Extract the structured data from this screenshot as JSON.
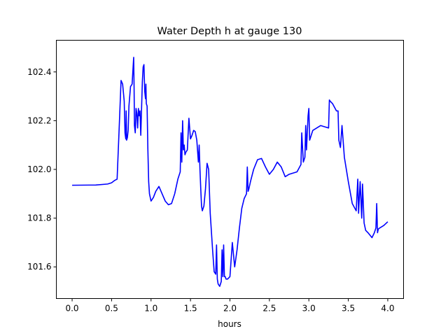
{
  "chart_data": {
    "type": "line",
    "title": "Water Depth h at gauge 130",
    "xlabel": "hours",
    "ylabel": "",
    "xlim": [
      -0.2,
      4.2
    ],
    "ylim": [
      101.47,
      102.53
    ],
    "x_ticks": [
      0.0,
      0.5,
      1.0,
      1.5,
      2.0,
      2.5,
      3.0,
      3.5,
      4.0
    ],
    "x_tick_labels": [
      "0.0",
      "0.5",
      "1.0",
      "1.5",
      "2.0",
      "2.5",
      "3.0",
      "3.5",
      "4.0"
    ],
    "y_ticks": [
      101.6,
      101.8,
      102.0,
      102.2,
      102.4
    ],
    "y_tick_labels": [
      "101.6",
      "101.8",
      "102.0",
      "102.2",
      "102.4"
    ],
    "grid": false,
    "colors": {
      "line": "#0000ff"
    },
    "series": [
      {
        "x": [
          0.0,
          0.3,
          0.45,
          0.5,
          0.54,
          0.57,
          0.6,
          0.62,
          0.64,
          0.66,
          0.67,
          0.68,
          0.685,
          0.69,
          0.7,
          0.71,
          0.72,
          0.74,
          0.76,
          0.78,
          0.785,
          0.79,
          0.8,
          0.81,
          0.82,
          0.83,
          0.84,
          0.85,
          0.86,
          0.87,
          0.88,
          0.89,
          0.9,
          0.91,
          0.92,
          0.93,
          0.935,
          0.94,
          0.95,
          0.96,
          0.97,
          0.98,
          1.0,
          1.03,
          1.06,
          1.1,
          1.14,
          1.18,
          1.22,
          1.26,
          1.3,
          1.34,
          1.37,
          1.38,
          1.39,
          1.4,
          1.41,
          1.42,
          1.43,
          1.44,
          1.46,
          1.48,
          1.5,
          1.52,
          1.54,
          1.56,
          1.58,
          1.6,
          1.61,
          1.62,
          1.63,
          1.64,
          1.65,
          1.67,
          1.69,
          1.71,
          1.73,
          1.75,
          1.78,
          1.8,
          1.82,
          1.83,
          1.84,
          1.85,
          1.87,
          1.89,
          1.9,
          1.91,
          1.92,
          1.93,
          1.94,
          1.95,
          1.97,
          2.0,
          2.03,
          2.06,
          2.09,
          2.12,
          2.15,
          2.18,
          2.21,
          2.22,
          2.23,
          2.24,
          2.26,
          2.3,
          2.35,
          2.4,
          2.45,
          2.5,
          2.55,
          2.6,
          2.65,
          2.7,
          2.75,
          2.8,
          2.85,
          2.9,
          2.91,
          2.93,
          2.95,
          2.96,
          2.97,
          2.99,
          3.0,
          3.01,
          3.05,
          3.1,
          3.15,
          3.2,
          3.25,
          3.26,
          3.27,
          3.3,
          3.35,
          3.37,
          3.38,
          3.4,
          3.42,
          3.45,
          3.5,
          3.55,
          3.6,
          3.62,
          3.63,
          3.65,
          3.67,
          3.68,
          3.7,
          3.72,
          3.75,
          3.8,
          3.83,
          3.85,
          3.86,
          3.87,
          3.88,
          3.9,
          3.95,
          4.0
        ],
        "y": [
          101.935,
          101.936,
          101.94,
          101.945,
          101.955,
          101.96,
          102.2,
          102.365,
          102.35,
          102.28,
          102.15,
          102.125,
          102.24,
          102.12,
          102.13,
          102.16,
          102.26,
          102.34,
          102.35,
          102.46,
          102.34,
          102.18,
          102.15,
          102.25,
          102.23,
          102.17,
          102.25,
          102.22,
          102.24,
          102.14,
          102.25,
          102.36,
          102.42,
          102.43,
          102.32,
          102.29,
          102.35,
          102.27,
          102.26,
          102.08,
          101.95,
          101.9,
          101.87,
          101.885,
          101.91,
          101.93,
          101.9,
          101.87,
          101.855,
          101.86,
          101.9,
          101.96,
          101.99,
          102.15,
          102.03,
          102.2,
          102.08,
          102.1,
          102.06,
          102.07,
          102.08,
          102.21,
          102.125,
          102.14,
          102.16,
          102.155,
          102.12,
          102.03,
          102.1,
          102.0,
          101.92,
          101.85,
          101.83,
          101.85,
          101.92,
          102.025,
          102.0,
          101.82,
          101.67,
          101.58,
          101.57,
          101.69,
          101.55,
          101.53,
          101.52,
          101.54,
          101.67,
          101.56,
          101.69,
          101.56,
          101.56,
          101.55,
          101.55,
          101.56,
          101.7,
          101.6,
          101.67,
          101.76,
          101.84,
          101.88,
          101.9,
          102.01,
          101.91,
          101.92,
          101.95,
          102.0,
          102.04,
          102.045,
          102.01,
          101.98,
          102.0,
          102.03,
          102.01,
          101.97,
          101.98,
          101.985,
          101.99,
          102.02,
          102.15,
          102.03,
          102.05,
          102.18,
          102.08,
          102.22,
          102.25,
          102.12,
          102.16,
          102.17,
          102.18,
          102.175,
          102.17,
          102.285,
          102.28,
          102.27,
          102.24,
          102.24,
          102.12,
          102.09,
          102.18,
          102.05,
          101.95,
          101.86,
          101.83,
          101.96,
          101.82,
          101.95,
          101.8,
          101.94,
          101.78,
          101.75,
          101.74,
          101.72,
          101.74,
          101.76,
          101.86,
          101.74,
          101.755,
          101.76,
          101.77,
          101.785
        ]
      }
    ]
  }
}
